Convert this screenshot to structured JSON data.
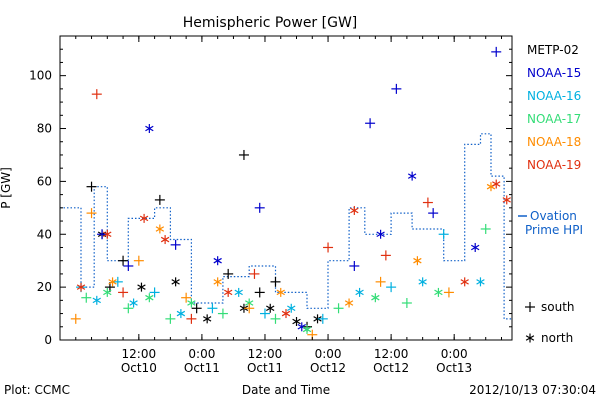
{
  "chart_data": {
    "type": "scatter",
    "title": "Hemispheric Power [GW]",
    "ylabel": "P [GW]",
    "xlabel": "Date and Time",
    "ylim": [
      0,
      115
    ],
    "xlim": [
      "2012-10-09T21:00",
      "2012-10-13T11:00"
    ],
    "yticks": [
      0,
      20,
      40,
      60,
      80,
      100
    ],
    "xticks": [
      {
        "t": "2012-10-10T12:00",
        "label": "12:00",
        "sub": "Oct10"
      },
      {
        "t": "2012-10-11T00:00",
        "label": "0:00",
        "sub": "Oct11"
      },
      {
        "t": "2012-10-11T12:00",
        "label": "12:00",
        "sub": "Oct11"
      },
      {
        "t": "2012-10-12T00:00",
        "label": "0:00",
        "sub": "Oct12"
      },
      {
        "t": "2012-10-12T12:00",
        "label": "12:00",
        "sub": "Oct12"
      },
      {
        "t": "2012-10-13T00:00",
        "label": "0:00",
        "sub": "Oct13"
      }
    ],
    "legend_placement": "right",
    "symbol_legend": [
      {
        "symbol": "+",
        "label": "south"
      },
      {
        "symbol": "*",
        "label": "north"
      }
    ],
    "series": [
      {
        "name": "METP-02",
        "color": "#000000",
        "points": [
          [
            "2012-10-10T03:00",
            58,
            "+"
          ],
          [
            "2012-10-10T05:00",
            40,
            "*"
          ],
          [
            "2012-10-10T06:30",
            20,
            "+"
          ],
          [
            "2012-10-10T09:00",
            30,
            "+"
          ],
          [
            "2012-10-10T12:30",
            20,
            "*"
          ],
          [
            "2012-10-10T16:00",
            53,
            "+"
          ],
          [
            "2012-10-10T19:00",
            22,
            "*"
          ],
          [
            "2012-10-10T23:00",
            12,
            "+"
          ],
          [
            "2012-10-11T01:00",
            8,
            "*"
          ],
          [
            "2012-10-11T05:00",
            25,
            "+"
          ],
          [
            "2012-10-11T08:00",
            12,
            "*"
          ],
          [
            "2012-10-11T11:00",
            18,
            "+"
          ],
          [
            "2012-10-11T13:00",
            12,
            "*"
          ],
          [
            "2012-10-11T14:00",
            22,
            "+"
          ],
          [
            "2012-10-11T18:00",
            7,
            "*"
          ],
          [
            "2012-10-11T20:00",
            5,
            "+"
          ],
          [
            "2012-10-11T22:00",
            8,
            "*"
          ],
          [
            "2012-10-11T08:00",
            70,
            "+"
          ]
        ]
      },
      {
        "name": "NOAA-15",
        "color": "#0000cc",
        "points": [
          [
            "2012-10-10T05:00",
            40,
            "+"
          ],
          [
            "2012-10-10T10:00",
            28,
            "+"
          ],
          [
            "2012-10-10T14:00",
            80,
            "*"
          ],
          [
            "2012-10-10T19:00",
            36,
            "+"
          ],
          [
            "2012-10-11T03:00",
            30,
            "*"
          ],
          [
            "2012-10-11T11:00",
            50,
            "+"
          ],
          [
            "2012-10-11T19:00",
            5,
            "*"
          ],
          [
            "2012-10-12T05:00",
            28,
            "+"
          ],
          [
            "2012-10-12T08:00",
            82,
            "+"
          ],
          [
            "2012-10-12T10:00",
            40,
            "*"
          ],
          [
            "2012-10-12T13:00",
            95,
            "+"
          ],
          [
            "2012-10-12T16:00",
            62,
            "*"
          ],
          [
            "2012-10-12T20:00",
            48,
            "+"
          ],
          [
            "2012-10-13T04:00",
            35,
            "*"
          ],
          [
            "2012-10-13T08:00",
            109,
            "+"
          ]
        ]
      },
      {
        "name": "NOAA-16",
        "color": "#00b0e0",
        "points": [
          [
            "2012-10-10T01:00",
            20,
            "+"
          ],
          [
            "2012-10-10T04:00",
            15,
            "*"
          ],
          [
            "2012-10-10T08:00",
            22,
            "+"
          ],
          [
            "2012-10-10T11:00",
            14,
            "*"
          ],
          [
            "2012-10-10T15:00",
            18,
            "+"
          ],
          [
            "2012-10-10T20:00",
            10,
            "*"
          ],
          [
            "2012-10-11T02:00",
            12,
            "+"
          ],
          [
            "2012-10-11T07:00",
            18,
            "*"
          ],
          [
            "2012-10-11T12:00",
            10,
            "+"
          ],
          [
            "2012-10-11T17:00",
            12,
            "*"
          ],
          [
            "2012-10-11T23:00",
            8,
            "+"
          ],
          [
            "2012-10-12T06:00",
            18,
            "*"
          ],
          [
            "2012-10-12T12:00",
            20,
            "+"
          ],
          [
            "2012-10-12T18:00",
            22,
            "*"
          ],
          [
            "2012-10-12T22:00",
            40,
            "+"
          ],
          [
            "2012-10-13T05:00",
            22,
            "*"
          ]
        ]
      },
      {
        "name": "NOAA-17",
        "color": "#33dd77",
        "points": [
          [
            "2012-10-10T02:00",
            16,
            "+"
          ],
          [
            "2012-10-10T06:00",
            18,
            "*"
          ],
          [
            "2012-10-10T10:00",
            12,
            "+"
          ],
          [
            "2012-10-10T14:00",
            16,
            "*"
          ],
          [
            "2012-10-10T18:00",
            8,
            "+"
          ],
          [
            "2012-10-10T22:00",
            14,
            "*"
          ],
          [
            "2012-10-11T04:00",
            10,
            "+"
          ],
          [
            "2012-10-11T09:00",
            14,
            "*"
          ],
          [
            "2012-10-11T14:00",
            8,
            "+"
          ],
          [
            "2012-10-11T20:00",
            4,
            "*"
          ],
          [
            "2012-10-12T02:00",
            12,
            "+"
          ],
          [
            "2012-10-12T09:00",
            16,
            "*"
          ],
          [
            "2012-10-12T15:00",
            14,
            "+"
          ],
          [
            "2012-10-12T21:00",
            18,
            "*"
          ],
          [
            "2012-10-13T06:00",
            42,
            "+"
          ]
        ]
      },
      {
        "name": "NOAA-18",
        "color": "#ff8c00",
        "points": [
          [
            "2012-10-10T00:00",
            8,
            "+"
          ],
          [
            "2012-10-10T03:00",
            48,
            "+"
          ],
          [
            "2012-10-10T07:00",
            22,
            "*"
          ],
          [
            "2012-10-10T12:00",
            30,
            "+"
          ],
          [
            "2012-10-10T16:00",
            42,
            "*"
          ],
          [
            "2012-10-10T21:00",
            16,
            "+"
          ],
          [
            "2012-10-11T03:00",
            22,
            "*"
          ],
          [
            "2012-10-11T09:00",
            12,
            "+"
          ],
          [
            "2012-10-11T15:00",
            18,
            "*"
          ],
          [
            "2012-10-11T21:00",
            2,
            "+"
          ],
          [
            "2012-10-12T04:00",
            14,
            "*"
          ],
          [
            "2012-10-12T10:00",
            22,
            "+"
          ],
          [
            "2012-10-12T17:00",
            30,
            "*"
          ],
          [
            "2012-10-12T23:00",
            18,
            "+"
          ],
          [
            "2012-10-13T07:00",
            58,
            "*"
          ]
        ]
      },
      {
        "name": "NOAA-19",
        "color": "#e03010",
        "points": [
          [
            "2012-10-10T04:00",
            93,
            "+"
          ],
          [
            "2012-10-10T01:00",
            20,
            "*"
          ],
          [
            "2012-10-10T06:00",
            40,
            "*"
          ],
          [
            "2012-10-10T09:00",
            18,
            "+"
          ],
          [
            "2012-10-10T13:00",
            46,
            "*"
          ],
          [
            "2012-10-10T17:00",
            38,
            "*"
          ],
          [
            "2012-10-10T22:00",
            8,
            "+"
          ],
          [
            "2012-10-11T05:00",
            18,
            "*"
          ],
          [
            "2012-10-11T10:00",
            25,
            "+"
          ],
          [
            "2012-10-11T16:00",
            10,
            "*"
          ],
          [
            "2012-10-12T00:00",
            35,
            "+"
          ],
          [
            "2012-10-12T05:00",
            49,
            "*"
          ],
          [
            "2012-10-12T11:00",
            32,
            "+"
          ],
          [
            "2012-10-12T19:00",
            52,
            "+"
          ],
          [
            "2012-10-13T02:00",
            22,
            "*"
          ],
          [
            "2012-10-13T08:00",
            59,
            "*"
          ],
          [
            "2012-10-13T10:00",
            53,
            "*"
          ]
        ]
      },
      {
        "name": "Ovation Prime HPI",
        "color": "#1060c8",
        "line": "dotted-step",
        "points": [
          [
            "2012-10-09T21:00",
            50
          ],
          [
            "2012-10-10T01:00",
            50
          ],
          [
            "2012-10-10T01:00",
            20
          ],
          [
            "2012-10-10T03:30",
            20
          ],
          [
            "2012-10-10T03:30",
            58
          ],
          [
            "2012-10-10T06:00",
            58
          ],
          [
            "2012-10-10T06:00",
            30
          ],
          [
            "2012-10-10T10:00",
            30
          ],
          [
            "2012-10-10T10:00",
            46
          ],
          [
            "2012-10-10T15:00",
            46
          ],
          [
            "2012-10-10T15:00",
            50
          ],
          [
            "2012-10-10T18:00",
            50
          ],
          [
            "2012-10-10T18:00",
            38
          ],
          [
            "2012-10-10T22:00",
            38
          ],
          [
            "2012-10-10T22:00",
            14
          ],
          [
            "2012-10-11T04:00",
            14
          ],
          [
            "2012-10-11T04:00",
            24
          ],
          [
            "2012-10-11T09:00",
            24
          ],
          [
            "2012-10-11T09:00",
            28
          ],
          [
            "2012-10-11T14:00",
            28
          ],
          [
            "2012-10-11T14:00",
            18
          ],
          [
            "2012-10-11T20:00",
            18
          ],
          [
            "2012-10-11T20:00",
            12
          ],
          [
            "2012-10-12T00:00",
            12
          ],
          [
            "2012-10-12T00:00",
            30
          ],
          [
            "2012-10-12T04:00",
            30
          ],
          [
            "2012-10-12T04:00",
            50
          ],
          [
            "2012-10-12T07:00",
            50
          ],
          [
            "2012-10-12T07:00",
            40
          ],
          [
            "2012-10-12T12:00",
            40
          ],
          [
            "2012-10-12T12:00",
            48
          ],
          [
            "2012-10-12T16:00",
            48
          ],
          [
            "2012-10-12T16:00",
            42
          ],
          [
            "2012-10-12T22:00",
            42
          ],
          [
            "2012-10-12T22:00",
            30
          ],
          [
            "2012-10-13T02:00",
            30
          ],
          [
            "2012-10-13T02:00",
            74
          ],
          [
            "2012-10-13T05:00",
            74
          ],
          [
            "2012-10-13T05:00",
            78
          ],
          [
            "2012-10-13T07:00",
            78
          ],
          [
            "2012-10-13T07:00",
            62
          ],
          [
            "2012-10-13T09:30",
            62
          ],
          [
            "2012-10-13T09:30",
            8
          ],
          [
            "2012-10-13T11:00",
            8
          ]
        ]
      }
    ]
  },
  "footer": {
    "plot_label": "Plot: CCMC",
    "timestamp": "2012/10/13 07:30:04"
  }
}
